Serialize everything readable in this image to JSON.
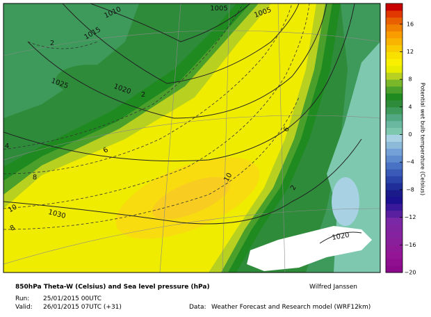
{
  "map": {
    "isobar_labels": [
      1010,
      1015,
      1005,
      1005,
      1025,
      1020,
      1030,
      1020
    ],
    "isotherm_labels": [
      2,
      2,
      4,
      6,
      8,
      10,
      10,
      8,
      6,
      2
    ]
  },
  "colorbar": {
    "label": "Potential wet bulb temperature (Celsius)",
    "range": [
      -20,
      19
    ],
    "ticks": [
      {
        "value": -20,
        "label": "−20"
      },
      {
        "value": -16,
        "label": "−16"
      },
      {
        "value": -12,
        "label": "−12"
      },
      {
        "value": -8,
        "label": "−8"
      },
      {
        "value": -4,
        "label": "−4"
      },
      0,
      4,
      8,
      12,
      16
    ],
    "colors": [
      "#8b0a8b",
      "#900f90",
      "#941595",
      "#8f1a98",
      "#8a1f9c",
      "#85229f",
      "#7f25a2",
      "#7a28a5",
      "#5a1fa0",
      "#3a189a",
      "#1a1090",
      "#1a1a8a",
      "#202e9a",
      "#2a44aa",
      "#3a5ab8",
      "#4a72c4",
      "#5e8ace",
      "#74a2d8",
      "#8ebada",
      "#a8d2e4",
      "#7ec8b0",
      "#6ab8a0",
      "#52a882",
      "#3d9a5a",
      "#2e8b3a",
      "#1f8a1f",
      "#4aa02a",
      "#7ab82a",
      "#b8d020",
      "#e8ec00",
      "#f8f000",
      "#f8e000",
      "#f8cc00",
      "#f8b400",
      "#f89c00",
      "#f08000",
      "#e86000",
      "#e03800",
      "#c80000"
    ]
  },
  "footer": {
    "title": "850hPa Theta-W (Celsius) and Sea level pressure (hPa)",
    "author": "Wilfred Janssen",
    "run_label": "Run:",
    "run_value": "25/01/2015 00UTC",
    "valid_label": "Valid:",
    "valid_value": "26/01/2015 07UTC (+31)",
    "data_label": "Data:",
    "data_value": "Weather Forecast and Research model (WRF12km)"
  }
}
